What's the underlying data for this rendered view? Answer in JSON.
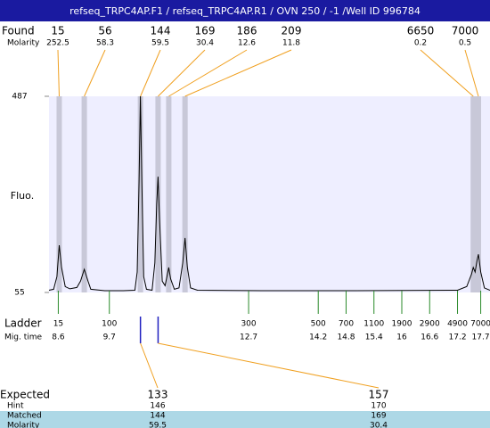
{
  "header": {
    "title": "refseq_TRPC4AP.F1 / refseq_TRPC4AP.R1 / OVN 250 / -1 /Well ID 996784"
  },
  "chart_data": {
    "type": "line",
    "ylabel": "Fluo.",
    "ylim": [
      55,
      487
    ],
    "yticks": [
      55,
      487
    ],
    "xlim": [
      8.4,
      17.9
    ],
    "color": "#000000",
    "x": [
      8.4,
      8.5,
      8.57,
      8.62,
      8.67,
      8.75,
      8.85,
      9.0,
      9.08,
      9.16,
      9.24,
      9.3,
      9.6,
      10.0,
      10.25,
      10.3,
      10.34,
      10.37,
      10.4,
      10.44,
      10.5,
      10.62,
      10.68,
      10.72,
      10.75,
      10.78,
      10.84,
      10.9,
      10.95,
      10.98,
      11.02,
      11.1,
      11.2,
      11.28,
      11.33,
      11.38,
      11.45,
      11.6,
      13.0,
      15.0,
      17.2,
      17.4,
      17.5,
      17.54,
      17.58,
      17.62,
      17.65,
      17.7,
      17.78,
      17.9
    ],
    "values": [
      60,
      62,
      90,
      159,
      110,
      68,
      63,
      66,
      80,
      106,
      80,
      62,
      59,
      59,
      60,
      100,
      300,
      487,
      300,
      90,
      62,
      60,
      120,
      250,
      310,
      220,
      80,
      70,
      95,
      110,
      85,
      62,
      65,
      120,
      175,
      110,
      65,
      60,
      59,
      59,
      60,
      68,
      95,
      110,
      100,
      125,
      139,
      100,
      65,
      60
    ],
    "found": {
      "label": "Found",
      "sub_label": "Molarity",
      "sizes": [
        15,
        56,
        144,
        169,
        186,
        209,
        6650,
        7000
      ],
      "molarity": [
        252.5,
        58.3,
        59.5,
        30.4,
        12.6,
        11.8,
        0.2,
        0.5
      ],
      "times": [
        8.62,
        9.16,
        10.37,
        10.75,
        10.98,
        11.33,
        17.54,
        17.65
      ]
    },
    "ladder": {
      "label": "Ladder",
      "sub_label": "Mig. time",
      "sizes": [
        15,
        100,
        300,
        500,
        700,
        1100,
        1900,
        2900,
        4900,
        7000
      ],
      "times": [
        8.6,
        9.7,
        12.7,
        14.2,
        14.8,
        15.4,
        16,
        16.6,
        17.2,
        17.7
      ]
    },
    "expected": {
      "labels": [
        "Expected",
        "Hint",
        "Matched",
        "Molarity"
      ],
      "expected": [
        133,
        157
      ],
      "hint": [
        146,
        170
      ],
      "matched": [
        144,
        169
      ],
      "molarity": [
        59.5,
        30.4
      ],
      "matched_times": [
        10.37,
        10.75
      ]
    }
  }
}
